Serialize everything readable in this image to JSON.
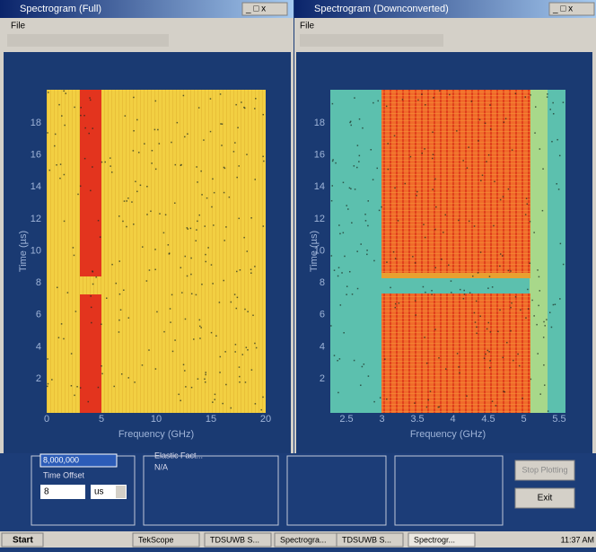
{
  "left_window": {
    "title": "Spectrogram (Full)",
    "menu": "File",
    "x_ticks": [
      0,
      5,
      10,
      15,
      20
    ],
    "y_ticks": [
      2,
      4,
      6,
      8,
      10,
      12,
      14,
      16,
      18
    ],
    "x_label": "Frequency (GHz)",
    "y_label": "Time (µs)"
  },
  "right_window": {
    "title": "Spectrogram (Downconverted)",
    "menu": "File",
    "x_ticks": [
      2.5,
      3,
      3.5,
      4,
      4.5,
      5,
      5.5
    ],
    "y_ticks": [
      2,
      4,
      6,
      8,
      10,
      12,
      14,
      16,
      18
    ],
    "x_label": "Frequency (GHz)",
    "y_label": "Time (µs)"
  },
  "control_panel": {
    "field_value": "8,000,000",
    "time_offset_label": "Time Offset",
    "time_offset_value": "8",
    "unit": "us",
    "status_label": "Elastic Fact...",
    "status_value": "N/A",
    "buttons": [
      "Stop Plotting",
      "Exit"
    ]
  },
  "taskbar": {
    "start": "Start",
    "items": [
      "TekScope",
      "TDSUWB S...",
      "Spectrogra...",
      "TDSUWB S...",
      "Spectrogr..."
    ],
    "clock": "11:37 AM"
  }
}
